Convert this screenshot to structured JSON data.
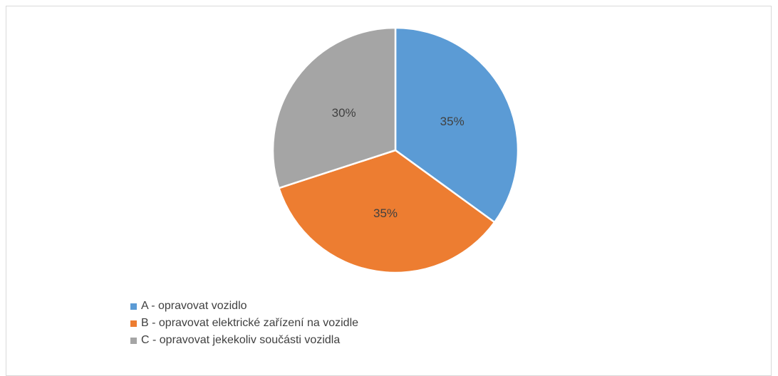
{
  "chart_data": {
    "type": "pie",
    "categories": [
      "A - opravovat vozidlo",
      "B - opravovat elektrické zařízení na vozidle",
      "C - opravovat jekekoliv součásti vozidla"
    ],
    "values": [
      35,
      35,
      30
    ],
    "data_labels": [
      "35%",
      "35%",
      "30%"
    ],
    "colors": [
      "#5b9bd5",
      "#ed7d31",
      "#a5a5a5"
    ],
    "start_angle_deg": 0,
    "direction": "clockwise",
    "legend_position": "bottom-left"
  }
}
